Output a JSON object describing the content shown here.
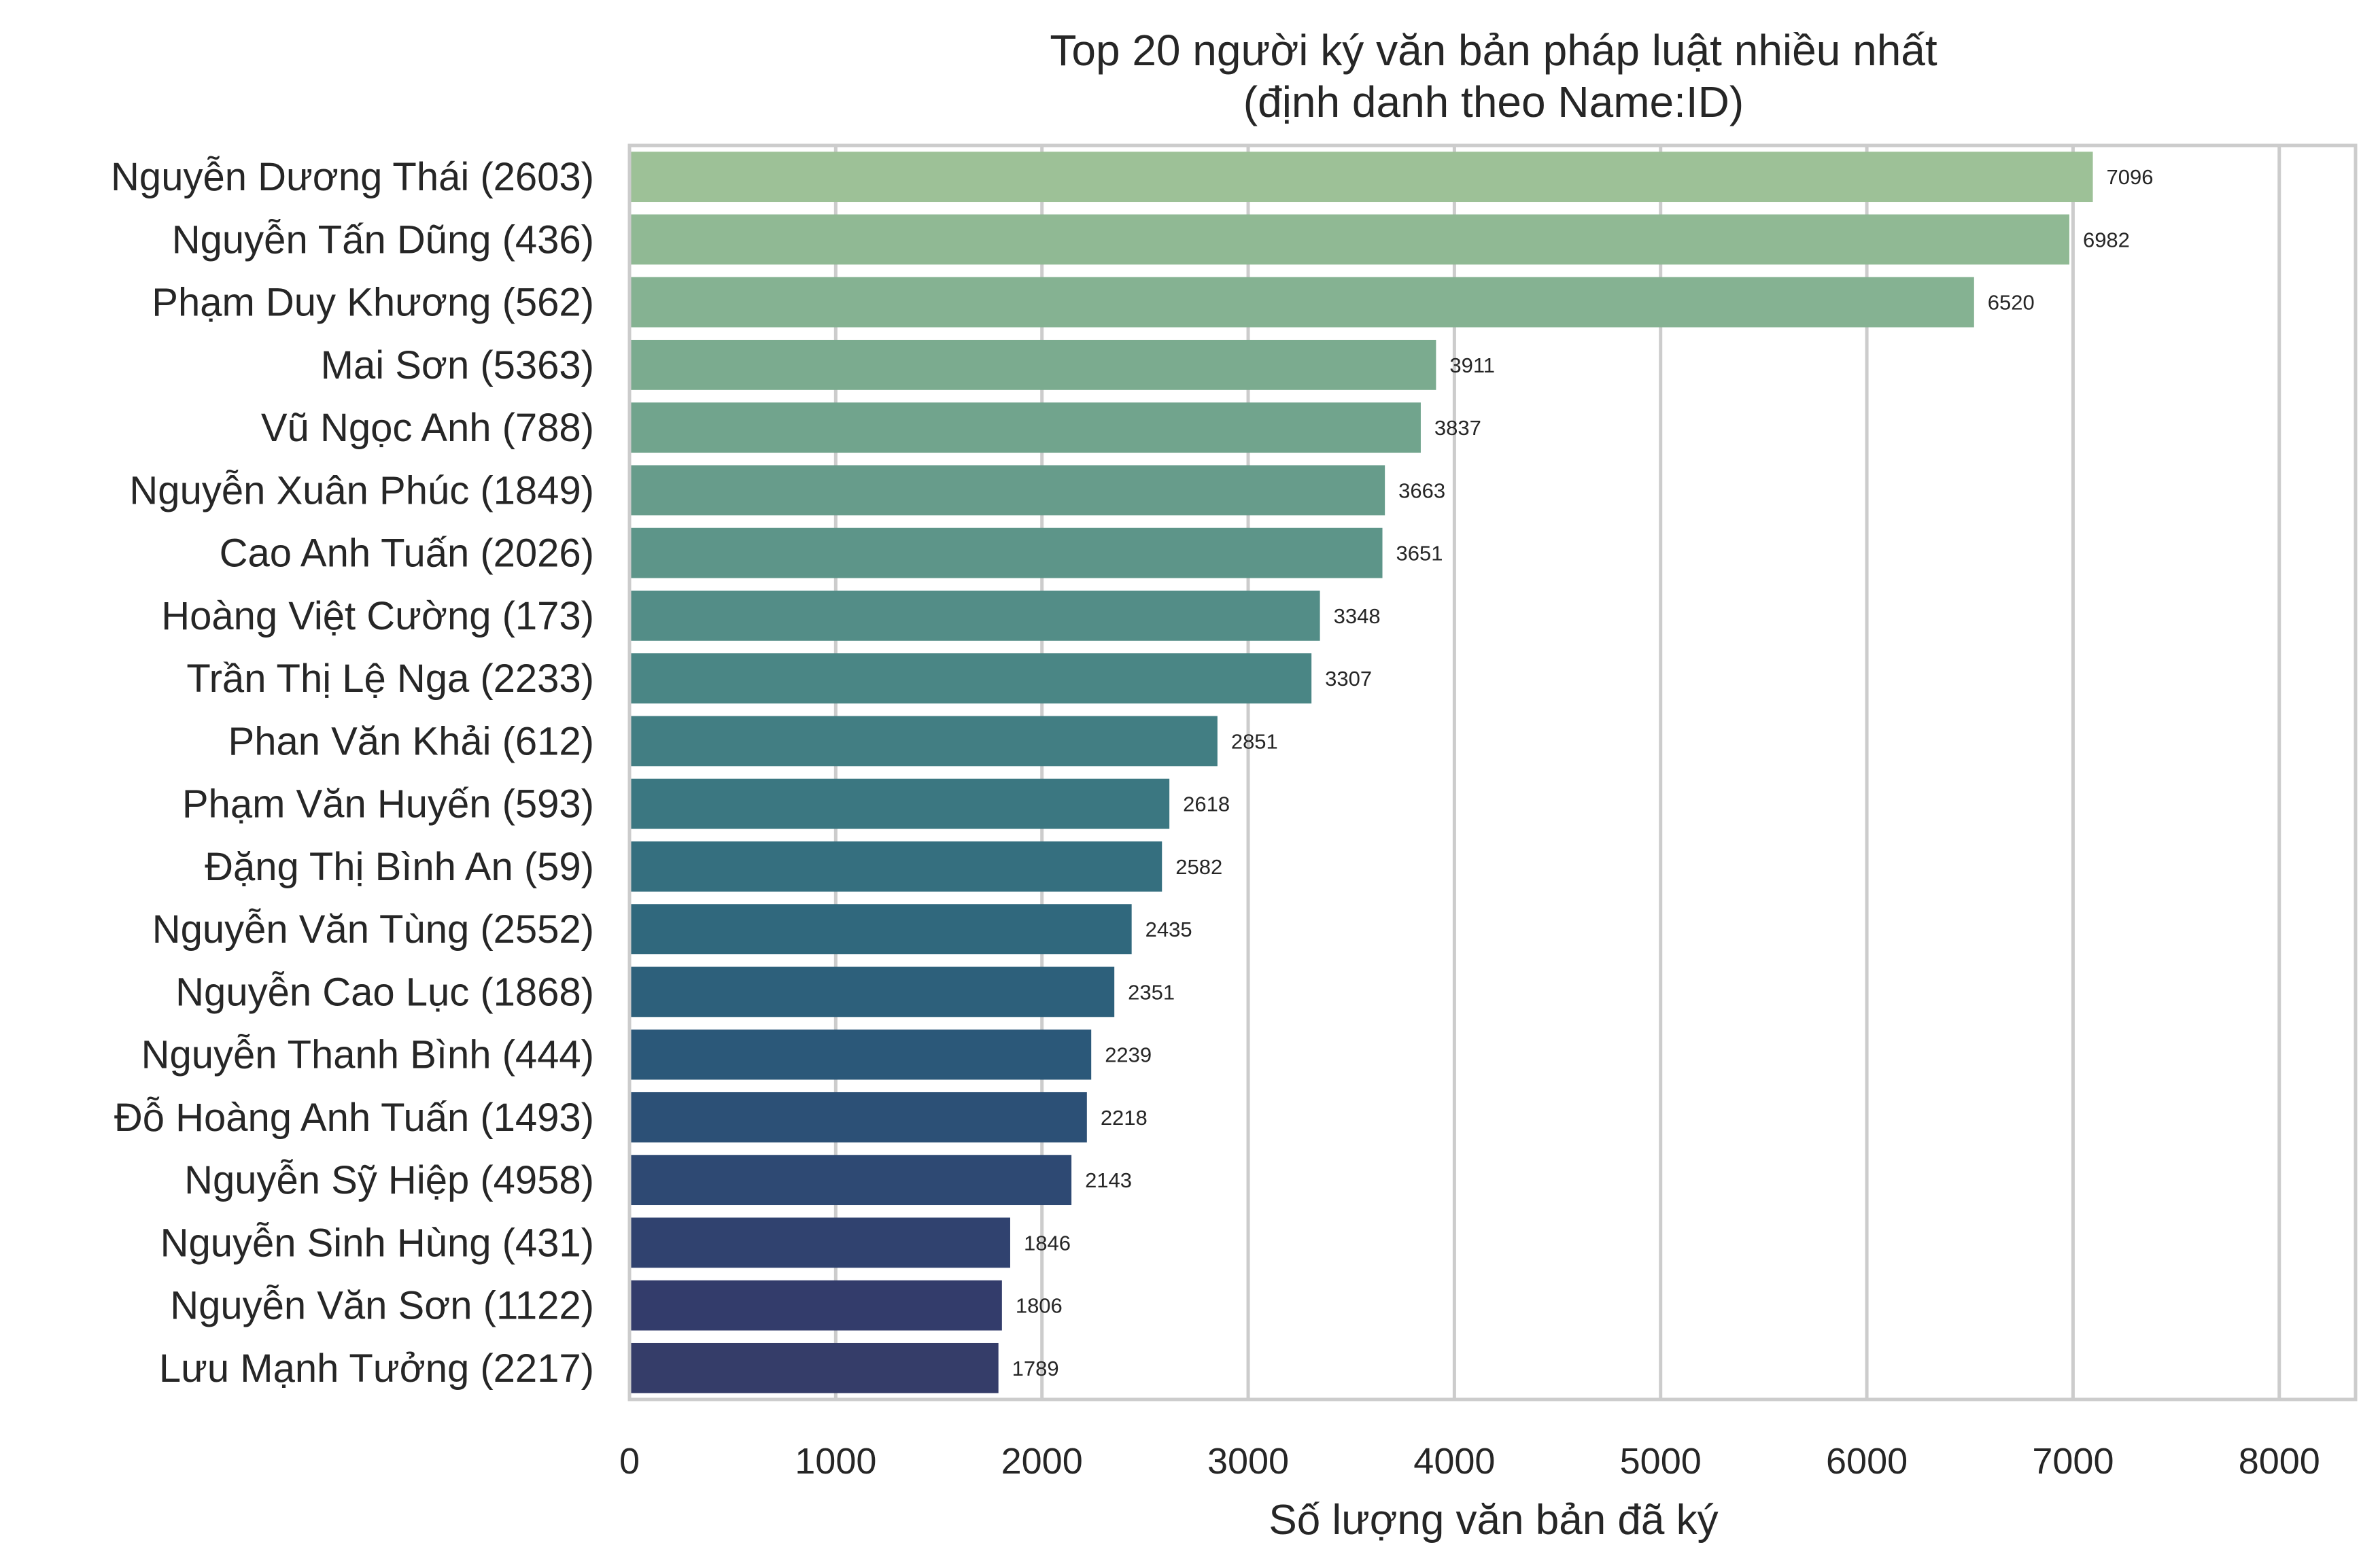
{
  "chart_data": {
    "type": "bar",
    "orientation": "horizontal",
    "title": "Top 20 người ký văn bản pháp luật nhiều nhất",
    "subtitle": "(định danh theo Name:ID)",
    "xlabel": "Số lượng văn bản đã ký",
    "ylabel": "",
    "xlim": [
      0,
      8370
    ],
    "xticks": [
      0,
      1000,
      2000,
      3000,
      4000,
      5000,
      6000,
      7000,
      8000
    ],
    "grid": "vertical",
    "categories": [
      "Nguyễn Dương Thái (2603)",
      "Nguyễn Tấn Dũng (436)",
      "Phạm Duy Khương (562)",
      "Mai Sơn (5363)",
      "Vũ Ngọc Anh (788)",
      "Nguyễn Xuân Phúc (1849)",
      "Cao Anh Tuấn (2026)",
      "Hoàng Việt Cường (173)",
      "Trần Thị Lệ Nga (2233)",
      "Phan Văn Khải (612)",
      "Phạm Văn Huyến (593)",
      "Đặng Thị Bình An (59)",
      "Nguyễn Văn Tùng (2552)",
      "Nguyễn Cao Lục (1868)",
      "Nguyễn Thanh Bình (444)",
      "Đỗ Hoàng Anh Tuấn (1493)",
      "Nguyễn Sỹ Hiệp (4958)",
      "Nguyễn Sinh Hùng (431)",
      "Nguyễn Văn Sơn (1122)",
      "Lưu Mạnh Tưởng (2217)"
    ],
    "values": [
      7096,
      6982,
      6520,
      3911,
      3837,
      3663,
      3651,
      3348,
      3307,
      2851,
      2618,
      2582,
      2435,
      2351,
      2239,
      2218,
      2143,
      1846,
      1806,
      1789
    ],
    "data_labels": [
      "7096",
      "6982",
      "6520",
      "3911",
      "3837",
      "3663",
      "3651",
      "3348",
      "3307",
      "2851",
      "2618",
      "2582",
      "2435",
      "2351",
      "2239",
      "2218",
      "2143",
      "1846",
      "1806",
      "1789"
    ],
    "colors": [
      "#9dc197",
      "#90b994",
      "#85b292",
      "#7bab8f",
      "#71a48d",
      "#679c8b",
      "#5d9589",
      "#538d87",
      "#4a8685",
      "#427e83",
      "#3b7781",
      "#356f7f",
      "#30687d",
      "#2d607b",
      "#2b5879",
      "#2c5076",
      "#2e4973",
      "#30426f",
      "#333c6b",
      "#353d69"
    ],
    "grid_color": "#cccccc",
    "spine_color": "#cccccc"
  }
}
